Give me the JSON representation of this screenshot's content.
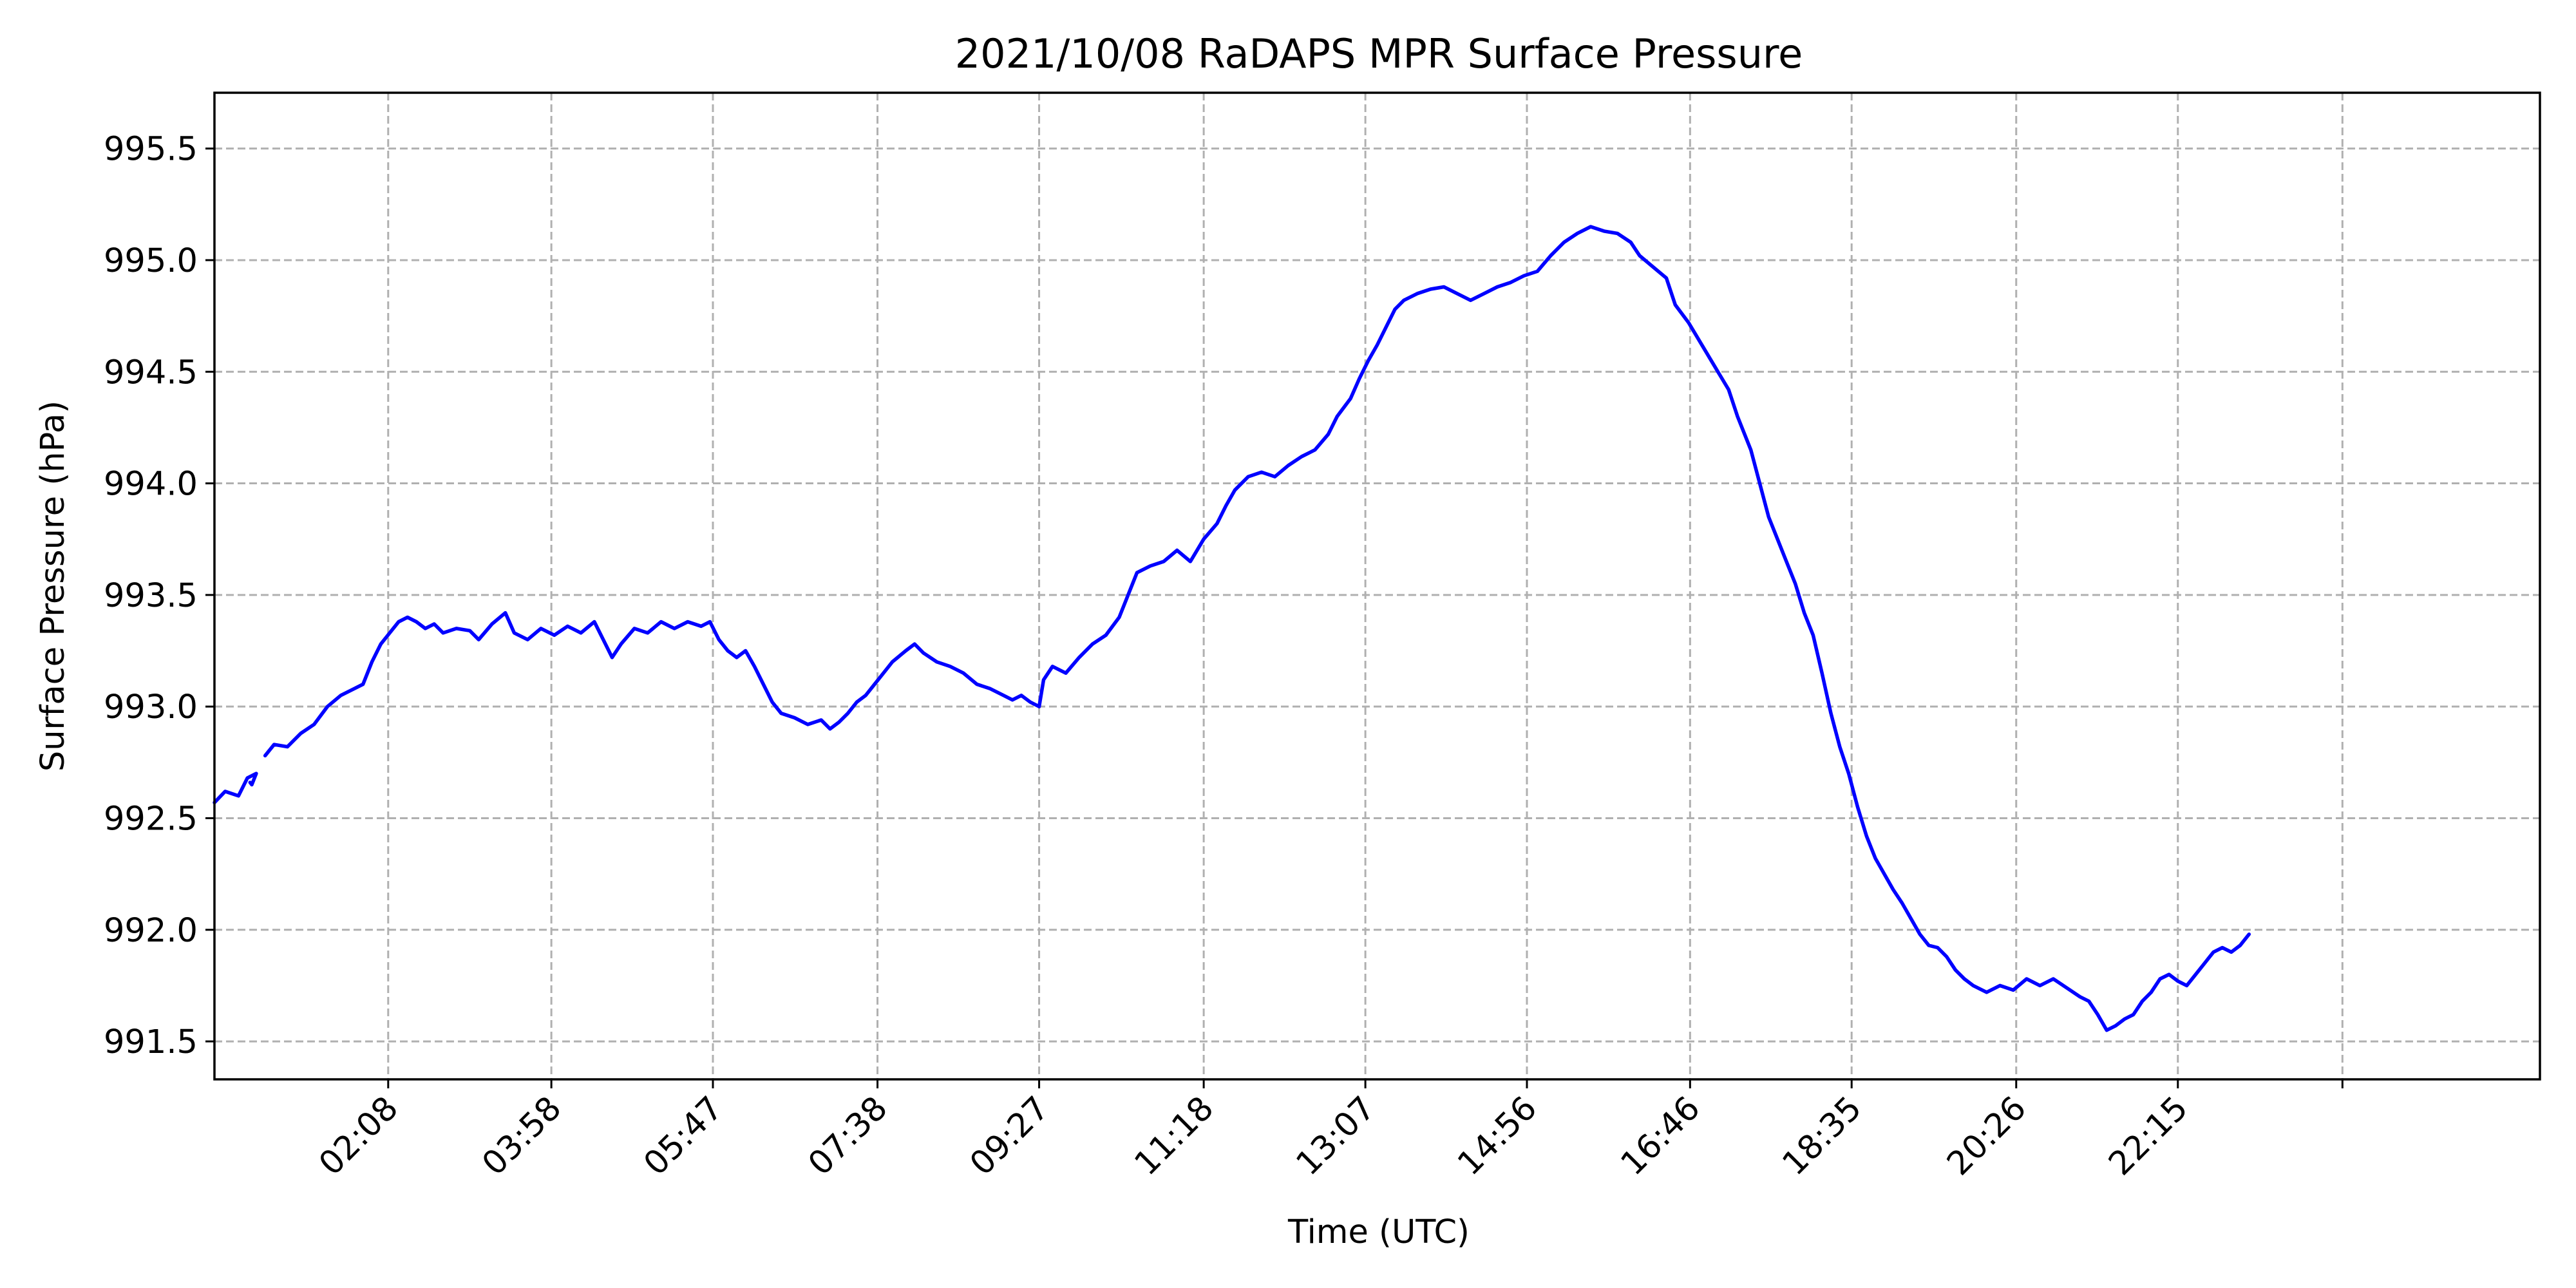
{
  "chart_data": {
    "type": "line",
    "title": "2021/10/08 RaDAPS MPR Surface Pressure",
    "xlabel": "Time (UTC)",
    "ylabel": "Surface Pressure (hPa)",
    "x_unit": "hours UTC",
    "xlim": [
      0.18,
      26.32
    ],
    "ylim": [
      991.33,
      995.75
    ],
    "grid": true,
    "legend": "none",
    "line_color": "#0000ff",
    "x_ticks": [
      {
        "label": "02:08",
        "value": 2.133
      },
      {
        "label": "03:58",
        "value": 3.967
      },
      {
        "label": "05:47",
        "value": 5.783
      },
      {
        "label": "07:38",
        "value": 7.633
      },
      {
        "label": "09:27",
        "value": 9.45
      },
      {
        "label": "11:18",
        "value": 11.3
      },
      {
        "label": "13:07",
        "value": 13.117
      },
      {
        "label": "14:56",
        "value": 14.933
      },
      {
        "label": "16:46",
        "value": 16.767
      },
      {
        "label": "18:35",
        "value": 18.583
      },
      {
        "label": "20:26",
        "value": 20.433
      },
      {
        "label": "22:15",
        "value": 22.25
      },
      {
        "label": "",
        "value": 24.1
      }
    ],
    "y_ticks": [
      991.5,
      992.0,
      992.5,
      993.0,
      993.5,
      994.0,
      994.5,
      995.0,
      995.5
    ],
    "series": [
      {
        "segments": [
          [
            [
              0.18,
              992.57
            ],
            [
              0.3,
              992.62
            ],
            [
              0.45,
              992.6
            ],
            [
              0.55,
              992.68
            ],
            [
              0.65,
              992.7
            ],
            [
              0.6,
              992.65
            ],
            [
              0.58,
              992.66
            ]
          ],
          [
            [
              0.75,
              992.78
            ],
            [
              0.85,
              992.83
            ],
            [
              1.0,
              992.82
            ],
            [
              1.15,
              992.88
            ],
            [
              1.3,
              992.92
            ],
            [
              1.45,
              993.0
            ],
            [
              1.6,
              993.05
            ],
            [
              1.75,
              993.08
            ],
            [
              1.85,
              993.1
            ],
            [
              1.95,
              993.2
            ],
            [
              2.05,
              993.28
            ],
            [
              2.15,
              993.33
            ],
            [
              2.25,
              993.38
            ],
            [
              2.35,
              993.4
            ],
            [
              2.45,
              993.38
            ],
            [
              2.55,
              993.35
            ],
            [
              2.65,
              993.37
            ],
            [
              2.75,
              993.33
            ],
            [
              2.9,
              993.35
            ],
            [
              3.05,
              993.34
            ],
            [
              3.15,
              993.3
            ],
            [
              3.3,
              993.37
            ],
            [
              3.45,
              993.42
            ],
            [
              3.55,
              993.33
            ],
            [
              3.7,
              993.3
            ],
            [
              3.85,
              993.35
            ],
            [
              4.0,
              993.32
            ],
            [
              4.15,
              993.36
            ],
            [
              4.3,
              993.33
            ],
            [
              4.45,
              993.38
            ],
            [
              4.55,
              993.3
            ],
            [
              4.65,
              993.22
            ],
            [
              4.75,
              993.28
            ],
            [
              4.9,
              993.35
            ],
            [
              5.05,
              993.33
            ],
            [
              5.2,
              993.38
            ],
            [
              5.35,
              993.35
            ],
            [
              5.5,
              993.38
            ],
            [
              5.65,
              993.36
            ],
            [
              5.75,
              993.38
            ],
            [
              5.85,
              993.3
            ],
            [
              5.95,
              993.25
            ],
            [
              6.05,
              993.22
            ],
            [
              6.15,
              993.25
            ],
            [
              6.25,
              993.18
            ],
            [
              6.35,
              993.1
            ],
            [
              6.45,
              993.02
            ],
            [
              6.55,
              992.97
            ],
            [
              6.7,
              992.95
            ],
            [
              6.85,
              992.92
            ],
            [
              7.0,
              992.94
            ],
            [
              7.1,
              992.9
            ],
            [
              7.2,
              992.93
            ],
            [
              7.3,
              992.97
            ],
            [
              7.4,
              993.02
            ],
            [
              7.5,
              993.05
            ],
            [
              7.6,
              993.1
            ],
            [
              7.7,
              993.15
            ],
            [
              7.8,
              993.2
            ],
            [
              7.95,
              993.25
            ],
            [
              8.05,
              993.28
            ],
            [
              8.15,
              993.24
            ],
            [
              8.3,
              993.2
            ],
            [
              8.45,
              993.18
            ],
            [
              8.6,
              993.15
            ],
            [
              8.75,
              993.1
            ],
            [
              8.9,
              993.08
            ],
            [
              9.05,
              993.05
            ],
            [
              9.15,
              993.03
            ],
            [
              9.25,
              993.05
            ],
            [
              9.35,
              993.02
            ],
            [
              9.45,
              993.0
            ],
            [
              9.5,
              993.12
            ],
            [
              9.6,
              993.18
            ],
            [
              9.75,
              993.15
            ],
            [
              9.9,
              993.22
            ],
            [
              10.05,
              993.28
            ],
            [
              10.2,
              993.32
            ],
            [
              10.35,
              993.4
            ],
            [
              10.45,
              993.5
            ],
            [
              10.55,
              993.6
            ],
            [
              10.7,
              993.63
            ],
            [
              10.85,
              993.65
            ],
            [
              11.0,
              993.7
            ],
            [
              11.15,
              993.65
            ],
            [
              11.3,
              993.75
            ],
            [
              11.45,
              993.82
            ],
            [
              11.55,
              993.9
            ],
            [
              11.65,
              993.97
            ],
            [
              11.8,
              994.03
            ],
            [
              11.95,
              994.05
            ],
            [
              12.1,
              994.03
            ],
            [
              12.25,
              994.08
            ],
            [
              12.4,
              994.12
            ],
            [
              12.55,
              994.15
            ],
            [
              12.7,
              994.22
            ],
            [
              12.8,
              994.3
            ],
            [
              12.95,
              994.38
            ],
            [
              13.05,
              994.47
            ],
            [
              13.15,
              994.55
            ],
            [
              13.25,
              994.62
            ],
            [
              13.35,
              994.7
            ],
            [
              13.45,
              994.78
            ],
            [
              13.55,
              994.82
            ],
            [
              13.7,
              994.85
            ],
            [
              13.85,
              994.87
            ],
            [
              14.0,
              994.88
            ],
            [
              14.15,
              994.85
            ],
            [
              14.3,
              994.82
            ],
            [
              14.45,
              994.85
            ],
            [
              14.6,
              994.88
            ],
            [
              14.75,
              994.9
            ],
            [
              14.9,
              994.93
            ],
            [
              15.05,
              994.95
            ],
            [
              15.2,
              995.02
            ],
            [
              15.35,
              995.08
            ],
            [
              15.5,
              995.12
            ],
            [
              15.65,
              995.15
            ],
            [
              15.8,
              995.13
            ],
            [
              15.95,
              995.12
            ],
            [
              16.1,
              995.08
            ],
            [
              16.2,
              995.02
            ],
            [
              16.35,
              994.97
            ],
            [
              16.5,
              994.92
            ],
            [
              16.6,
              994.8
            ],
            [
              16.75,
              994.72
            ],
            [
              16.9,
              994.62
            ],
            [
              17.05,
              994.52
            ],
            [
              17.2,
              994.42
            ],
            [
              17.3,
              994.3
            ],
            [
              17.45,
              994.15
            ],
            [
              17.55,
              994.0
            ],
            [
              17.65,
              993.85
            ],
            [
              17.75,
              993.75
            ],
            [
              17.85,
              993.65
            ],
            [
              17.95,
              993.55
            ],
            [
              18.05,
              993.42
            ],
            [
              18.15,
              993.32
            ],
            [
              18.25,
              993.15
            ],
            [
              18.35,
              992.97
            ],
            [
              18.45,
              992.82
            ],
            [
              18.55,
              992.7
            ],
            [
              18.65,
              992.55
            ],
            [
              18.75,
              992.42
            ],
            [
              18.85,
              992.32
            ],
            [
              18.95,
              992.25
            ],
            [
              19.05,
              992.18
            ],
            [
              19.15,
              992.12
            ],
            [
              19.25,
              992.05
            ],
            [
              19.35,
              991.98
            ],
            [
              19.45,
              991.93
            ],
            [
              19.55,
              991.92
            ],
            [
              19.65,
              991.88
            ],
            [
              19.75,
              991.82
            ],
            [
              19.85,
              991.78
            ],
            [
              19.95,
              991.75
            ],
            [
              20.1,
              991.72
            ],
            [
              20.25,
              991.75
            ],
            [
              20.4,
              991.73
            ],
            [
              20.55,
              991.78
            ],
            [
              20.7,
              991.75
            ],
            [
              20.85,
              991.78
            ],
            [
              21.0,
              991.74
            ],
            [
              21.15,
              991.7
            ],
            [
              21.25,
              991.68
            ],
            [
              21.35,
              991.62
            ],
            [
              21.45,
              991.55
            ],
            [
              21.55,
              991.57
            ],
            [
              21.65,
              991.6
            ],
            [
              21.75,
              991.62
            ],
            [
              21.85,
              991.68
            ],
            [
              21.95,
              991.72
            ],
            [
              22.05,
              991.78
            ],
            [
              22.15,
              991.8
            ],
            [
              22.25,
              991.77
            ],
            [
              22.35,
              991.75
            ],
            [
              22.45,
              991.8
            ],
            [
              22.55,
              991.85
            ],
            [
              22.65,
              991.9
            ],
            [
              22.75,
              991.92
            ],
            [
              22.85,
              991.9
            ],
            [
              22.95,
              991.93
            ],
            [
              23.05,
              991.98
            ]
          ]
        ]
      }
    ]
  }
}
